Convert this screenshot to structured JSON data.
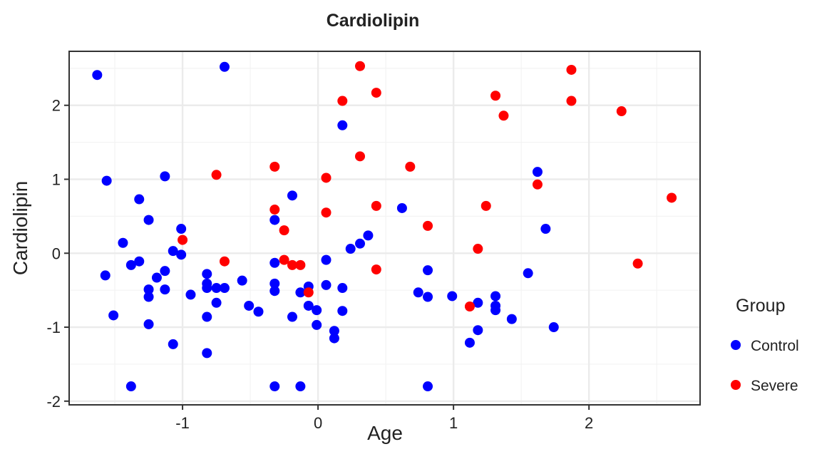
{
  "chart_data": {
    "type": "scatter",
    "title": "Cardiolipin",
    "x_label": "Age",
    "y_label": "Cardiolipin",
    "legend_title": "Group",
    "legend": "right",
    "grid": true,
    "xlim": [
      -1.837,
      2.82
    ],
    "xticks": [
      -1,
      0,
      1,
      2
    ],
    "ylim": [
      -2.05,
      2.73
    ],
    "yticks": [
      -2,
      -1,
      0,
      1,
      2
    ],
    "series": [
      {
        "name": "Control",
        "color": "#0000ff",
        "x": [
          -1.63,
          -0.69,
          -1.56,
          -1.32,
          -1.13,
          -1.25,
          -1.44,
          -1.01,
          -1.07,
          -1.01,
          -1.38,
          -1.32,
          -1.13,
          -1.57,
          -1.19,
          -1.13,
          -1.25,
          -1.25,
          -1.51,
          -1.25,
          -1.07,
          -1.38,
          -0.82,
          -0.82,
          -0.82,
          -0.75,
          -0.69,
          -0.94,
          -0.75,
          -0.82,
          -0.82,
          -0.56,
          -0.51,
          -0.44,
          -0.32,
          -0.32,
          -0.32,
          -0.32,
          -0.32,
          -0.19,
          -0.13,
          -0.19,
          -0.13,
          -0.07,
          -0.07,
          -0.01,
          -0.01,
          0.06,
          0.06,
          0.12,
          0.12,
          0.18,
          0.18,
          0.18,
          0.24,
          0.31,
          0.37,
          0.62,
          0.74,
          0.81,
          0.81,
          0.81,
          0.99,
          1.18,
          1.18,
          1.12,
          1.31,
          1.31,
          1.31,
          1.43,
          1.55,
          1.62,
          1.68,
          1.74
        ],
        "values": [
          2.41,
          2.52,
          0.98,
          0.73,
          1.04,
          0.45,
          0.14,
          0.33,
          0.03,
          -0.02,
          -0.16,
          -0.11,
          -0.24,
          -0.3,
          -0.33,
          -0.49,
          -0.49,
          -0.59,
          -0.84,
          -0.96,
          -1.23,
          -1.8,
          -0.28,
          -0.41,
          -0.47,
          -0.47,
          -0.47,
          -0.56,
          -0.67,
          -0.86,
          -1.35,
          -0.37,
          -0.71,
          -0.79,
          0.45,
          -0.13,
          -0.41,
          -0.51,
          -1.8,
          0.78,
          -0.53,
          -0.86,
          -1.8,
          -0.45,
          -0.71,
          -0.77,
          -0.97,
          -0.09,
          -0.43,
          -1.05,
          -1.15,
          1.73,
          -0.47,
          -0.78,
          0.06,
          0.13,
          0.24,
          0.61,
          -0.53,
          -0.23,
          -0.59,
          -1.8,
          -0.58,
          -0.67,
          -1.04,
          -1.21,
          -0.58,
          -0.71,
          -0.77,
          -0.89,
          -0.27,
          1.1,
          0.33,
          -1.0
        ]
      },
      {
        "name": "Severe",
        "color": "#ff0000",
        "x": [
          -1.0,
          -0.75,
          -0.69,
          -0.32,
          -0.32,
          -0.25,
          -0.25,
          -0.19,
          -0.13,
          -0.07,
          0.06,
          0.06,
          0.18,
          0.31,
          0.31,
          0.43,
          0.43,
          0.43,
          0.68,
          0.81,
          1.12,
          1.18,
          1.24,
          1.31,
          1.37,
          1.62,
          1.87,
          1.87,
          2.24,
          2.36,
          2.61
        ],
        "values": [
          0.18,
          1.06,
          -0.11,
          1.17,
          0.59,
          0.31,
          -0.09,
          -0.16,
          -0.16,
          -0.53,
          1.02,
          0.55,
          2.06,
          2.53,
          1.31,
          2.17,
          0.64,
          -0.22,
          1.17,
          0.37,
          -0.72,
          0.06,
          0.64,
          2.13,
          1.86,
          0.93,
          2.48,
          2.06,
          1.92,
          -0.14,
          0.75
        ]
      }
    ]
  }
}
